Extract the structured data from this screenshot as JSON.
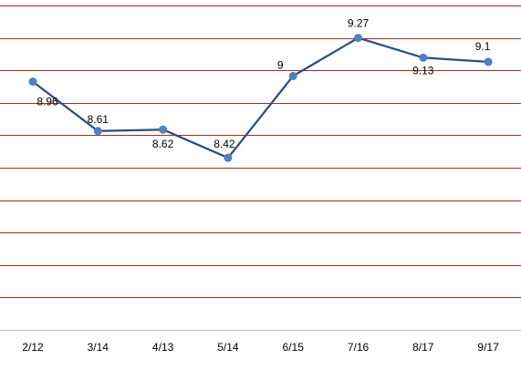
{
  "chart_data": {
    "type": "line",
    "title": "",
    "xlabel": "",
    "ylabel": "",
    "categories": [
      "2/12",
      "3/14",
      "4/13",
      "5/14",
      "6/15",
      "7/16",
      "8/17",
      "9/17"
    ],
    "series": [
      {
        "values": [
          8.96,
          8.61,
          8.62,
          8.42,
          9,
          9.27,
          9.13,
          9.1
        ]
      }
    ],
    "data_labels": [
      "8.96",
      "8.61",
      "8.62",
      "8.42",
      "9",
      "9.27",
      "9.13",
      "9.1"
    ],
    "ylim": [
      7.2,
      9.5
    ],
    "y_axis_visible": false,
    "grid": true,
    "legend": "none",
    "colors": {
      "line": "#2E4D7B",
      "marker": "#4F81BD",
      "grid": "#A52A2A",
      "axis": "#BFBFBF"
    }
  }
}
